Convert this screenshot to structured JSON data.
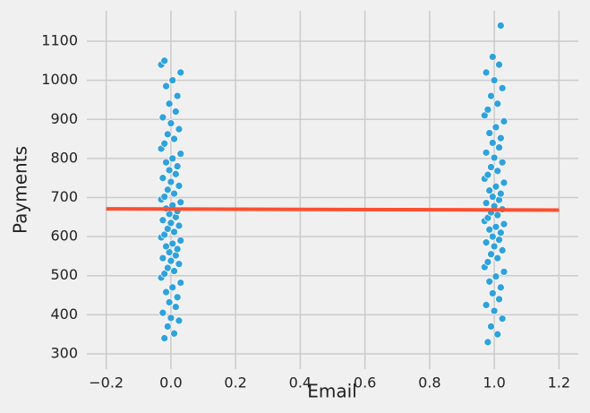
{
  "chart_data": {
    "type": "scatter",
    "xlabel": "Email",
    "ylabel": "Payments",
    "xlim": [
      -0.26,
      1.26
    ],
    "ylim": [
      261,
      1178
    ],
    "xticks": [
      {
        "value": -0.2,
        "label": "−0.2"
      },
      {
        "value": 0,
        "label": "0.0"
      },
      0.2,
      0.4,
      0.6,
      0.8,
      {
        "value": 1,
        "label": "1.0"
      },
      1.2
    ],
    "yticks": [
      300,
      400,
      500,
      600,
      700,
      800,
      900,
      1000,
      1100
    ],
    "grid": true,
    "color": "#30a2da",
    "edgecolor": "#ffffff",
    "x": [
      -0.02,
      0.01,
      -0.01,
      0.025,
      0,
      -0.025,
      0.015,
      -0.005,
      0.02,
      -0.015,
      0.005,
      0.03,
      -0.03,
      -0.02,
      0.01,
      -0.01,
      0.025,
      0,
      -0.025,
      0.015,
      -0.005,
      0.02,
      -0.015,
      0.005,
      0.03,
      -0.03,
      -0.02,
      0.01,
      -0.01,
      0.025,
      0,
      -0.025,
      0.015,
      -0.005,
      0.02,
      -0.015,
      0.005,
      0.03,
      -0.03,
      -0.02,
      0.01,
      -0.01,
      0.025,
      0,
      -0.025,
      0.015,
      -0.005,
      0.02,
      -0.015,
      0.005,
      0.03,
      -0.03,
      -0.02,
      0.01,
      -0.01,
      0.025,
      0,
      -0.025,
      0.015,
      -0.005,
      0.02,
      -0.015,
      0.005,
      0.03,
      -0.03,
      -0.02,
      0.98,
      1.01,
      0.99,
      1.025,
      1,
      0.975,
      1.015,
      0.995,
      1.02,
      0.985,
      1.005,
      1.03,
      0.97,
      0.98,
      1.01,
      0.99,
      1.025,
      1,
      0.975,
      1.015,
      0.995,
      1.02,
      0.985,
      1.005,
      1.03,
      0.97,
      0.98,
      1.01,
      0.99,
      1.025,
      1,
      0.975,
      1.015,
      0.995,
      1.02,
      0.985,
      1.005,
      1.03,
      0.97,
      0.98,
      1.01,
      0.99,
      1.025,
      1,
      0.975,
      1.015,
      0.995,
      1.02,
      0.985,
      1.005,
      1.03,
      0.97,
      0.98,
      1.01,
      0.99,
      1.025,
      1,
      0.975,
      1.015,
      0.995,
      1.02
    ],
    "y": [
      340,
      352,
      370,
      385,
      392,
      405,
      420,
      432,
      445,
      458,
      470,
      482,
      495,
      505,
      512,
      520,
      530,
      538,
      545,
      552,
      560,
      568,
      575,
      582,
      590,
      598,
      605,
      612,
      620,
      628,
      635,
      642,
      650,
      658,
      665,
      672,
      680,
      688,
      695,
      702,
      710,
      720,
      730,
      740,
      750,
      760,
      770,
      780,
      790,
      800,
      812,
      825,
      838,
      850,
      862,
      875,
      890,
      905,
      920,
      940,
      960,
      985,
      1000,
      1020,
      1040,
      1050,
      330,
      350,
      370,
      390,
      410,
      425,
      440,
      455,
      470,
      485,
      498,
      510,
      522,
      535,
      545,
      555,
      565,
      575,
      585,
      592,
      600,
      610,
      618,
      625,
      632,
      640,
      648,
      655,
      662,
      670,
      678,
      686,
      694,
      702,
      710,
      718,
      728,
      738,
      748,
      758,
      768,
      778,
      790,
      802,
      815,
      828,
      840,
      852,
      865,
      880,
      895,
      910,
      925,
      940,
      960,
      980,
      1000,
      1020,
      1040,
      1060,
      1140
    ],
    "line": {
      "x": [
        -0.2,
        1.2
      ],
      "y": [
        671,
        668
      ],
      "color": "#fc4f30"
    }
  }
}
